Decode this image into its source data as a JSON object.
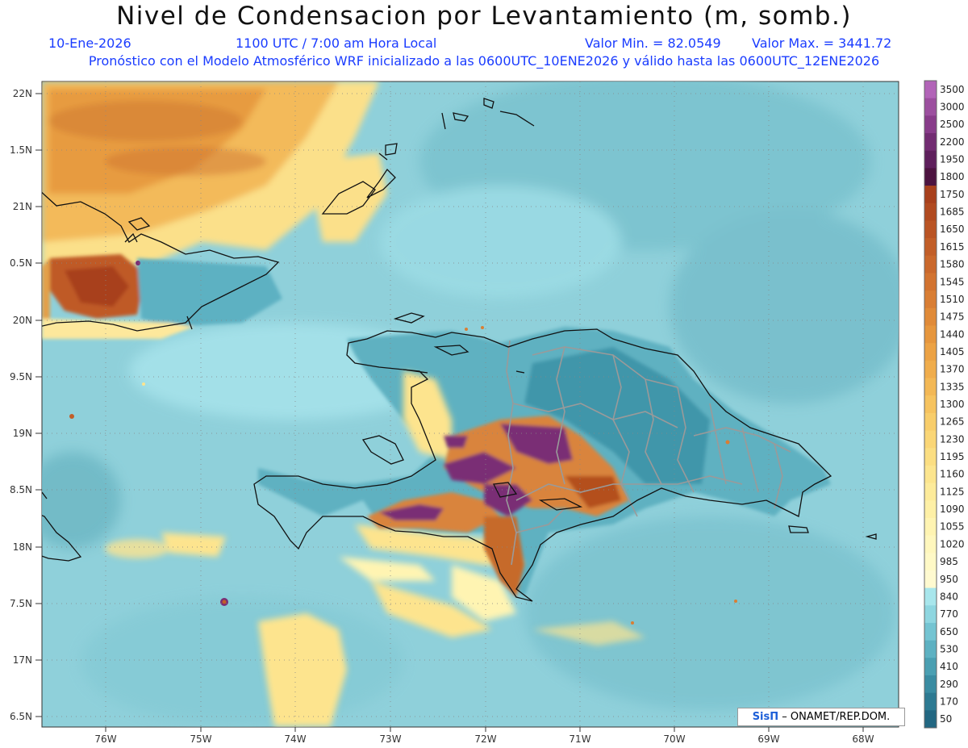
{
  "header": {
    "title": "Nivel de Condensacion por Levantamiento (m, somb.)",
    "date": "10-Ene-2026",
    "time": "1100 UTC / 7:00 am Hora Local",
    "value_min": "Valor Min. = 82.0549",
    "value_max": "Valor Max. = 3441.72",
    "init_text": "Pronóstico con el Modelo Atmosférico WRF inicializado a las 0600UTC_10ENE2026 y válido hasta las  0600UTC_12ENE2026"
  },
  "map": {
    "lat_labels": [
      "22N",
      "1.5N",
      "21N",
      "0.5N",
      "20N",
      "9.5N",
      "19N",
      "8.5N",
      "18N",
      "7.5N",
      "17N",
      "6.5N"
    ],
    "lon_labels": [
      "76W",
      "75W",
      "74W",
      "73W",
      "72W",
      "71W",
      "70W",
      "69W",
      "68W"
    ]
  },
  "colorbar": {
    "levels": [
      "3500",
      "3000",
      "2500",
      "2200",
      "1950",
      "1800",
      "1750",
      "1685",
      "1650",
      "1615",
      "1580",
      "1545",
      "1510",
      "1475",
      "1440",
      "1405",
      "1370",
      "1335",
      "1300",
      "1265",
      "1230",
      "1195",
      "1160",
      "1125",
      "1090",
      "1055",
      "1020",
      "985",
      "950",
      "840",
      "770",
      "650",
      "530",
      "410",
      "290",
      "170",
      "50"
    ],
    "colors": [
      "#b264b8",
      "#9c4f9f",
      "#883c8a",
      "#722c72",
      "#5e1f5c",
      "#4c1340",
      "#a8401c",
      "#b14a20",
      "#ba5424",
      "#c25e28",
      "#ca682c",
      "#d27330",
      "#d97e34",
      "#e08a38",
      "#e6963d",
      "#eca244",
      "#f0ad4c",
      "#f3b855",
      "#f6c35f",
      "#f8cd6a",
      "#fad676",
      "#fbde82",
      "#fce58e",
      "#fdeb9a",
      "#fef0a6",
      "#fff4b2",
      "#fff7bd",
      "#fff9c6",
      "#fffad0",
      "#a8e6ec",
      "#8ed6e0",
      "#74c4d2",
      "#5db1c2",
      "#4a9fb2",
      "#3a8ca2",
      "#2d7a92",
      "#226782"
    ]
  },
  "signature": {
    "brand": "SisΠ",
    "text": "– ONAMET/REP.DOM."
  }
}
